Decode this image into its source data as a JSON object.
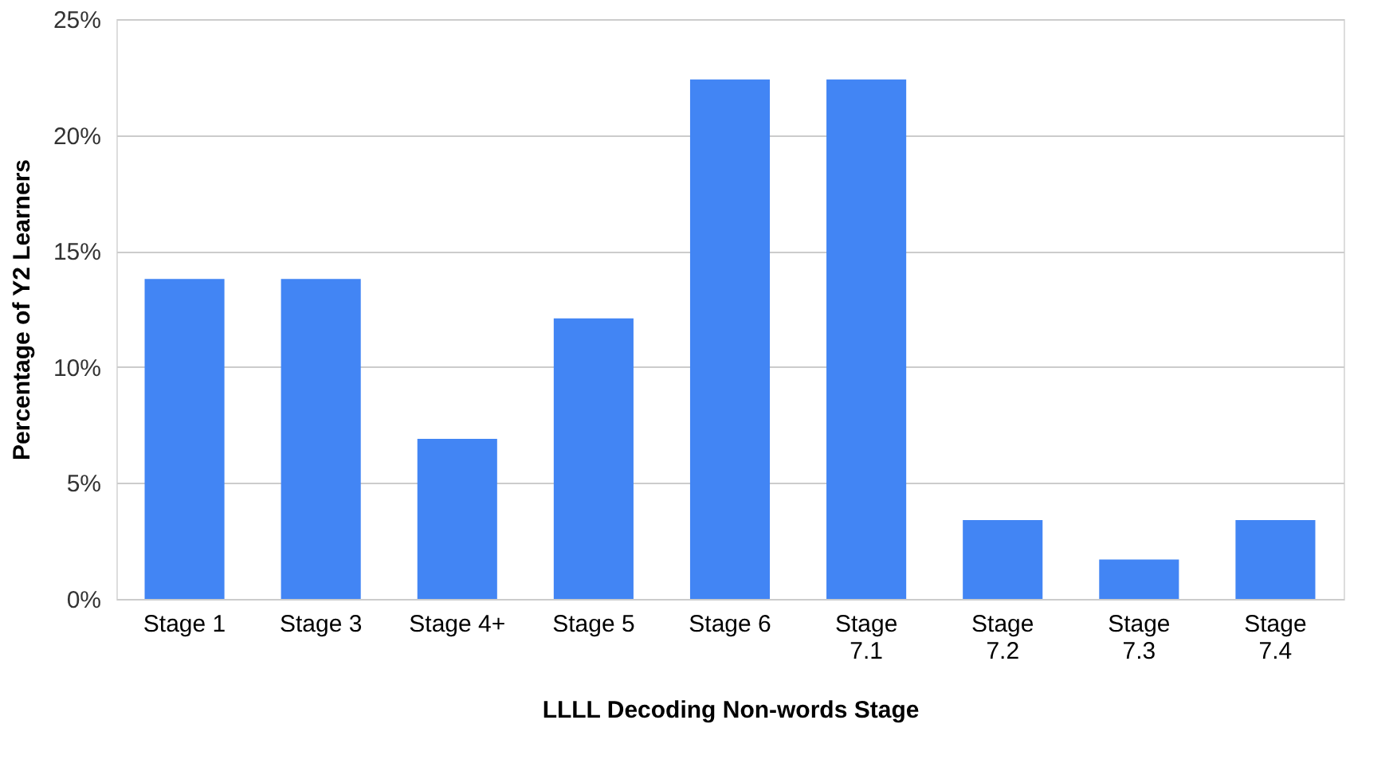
{
  "chart_data": {
    "type": "bar",
    "xlabel": "LLLL Decoding Non-words Stage",
    "ylabel": "Percentage of Y2 Learners",
    "categories": [
      "Stage 1",
      "Stage 3",
      "Stage 4+",
      "Stage 5",
      "Stage 6",
      "Stage 7.1",
      "Stage 7.2",
      "Stage 7.3",
      "Stage 7.4"
    ],
    "values": [
      13.8,
      13.8,
      6.9,
      12.1,
      22.4,
      22.4,
      3.4,
      1.7,
      3.4
    ],
    "color": "#4285f4",
    "ylim": [
      0,
      25
    ],
    "yticks": [
      {
        "value": 0,
        "label": "0%"
      },
      {
        "value": 5,
        "label": "5%"
      },
      {
        "value": 10,
        "label": "10%"
      },
      {
        "value": 15,
        "label": "15%"
      },
      {
        "value": 20,
        "label": "20%"
      },
      {
        "value": 25,
        "label": "25%"
      }
    ],
    "grid": "y"
  }
}
